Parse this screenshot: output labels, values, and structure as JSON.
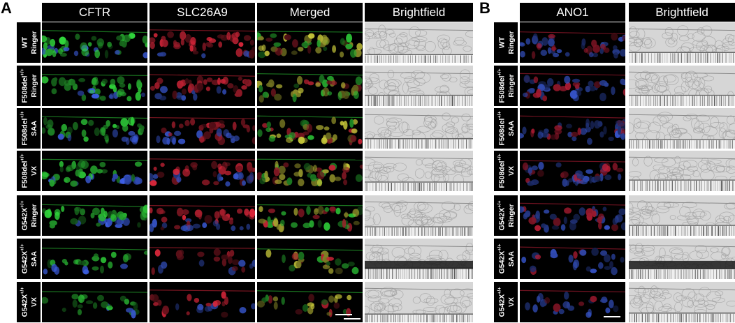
{
  "panels": [
    {
      "letter": "A",
      "headers": [
        "CFTR",
        "SLC26A9",
        "Merged",
        "Brightfield"
      ],
      "rows": [
        {
          "genotype": "WT",
          "sup": "",
          "treatment": "Ringer"
        },
        {
          "genotype": "F508del",
          "sup": "+/+",
          "treatment": "Ringer"
        },
        {
          "genotype": "F508del",
          "sup": "+/+",
          "treatment": "SAA"
        },
        {
          "genotype": "F508del",
          "sup": "+/+",
          "treatment": "VX"
        },
        {
          "genotype": "G542X",
          "sup": "+/+",
          "treatment": "Ringer"
        },
        {
          "genotype": "G542X",
          "sup": "+/+",
          "treatment": "SAA"
        },
        {
          "genotype": "G542X",
          "sup": "+/+",
          "treatment": "VX"
        }
      ]
    },
    {
      "letter": "B",
      "headers": [
        "ANO1",
        "Brightfield"
      ],
      "rows": [
        {
          "genotype": "WT",
          "sup": "",
          "treatment": "Ringer"
        },
        {
          "genotype": "F508del",
          "sup": "+/+",
          "treatment": "Ringer"
        },
        {
          "genotype": "F508del",
          "sup": "+/+",
          "treatment": "SAA"
        },
        {
          "genotype": "F508del",
          "sup": "+/+",
          "treatment": "VX"
        },
        {
          "genotype": "G542X",
          "sup": "+/+",
          "treatment": "Ringer"
        },
        {
          "genotype": "G542X",
          "sup": "+/+",
          "treatment": "SAA"
        },
        {
          "genotype": "G542X",
          "sup": "+/+",
          "treatment": "VX"
        }
      ]
    }
  ],
  "channel_colors": {
    "CFTR": "#2fd23a",
    "SLC26A9": "#d8263a",
    "Merged": "#c8c83a",
    "ANO1": "#c8203a",
    "nuclei_dapi": "#3a5ad8",
    "brightfield": "#d6d6d6"
  }
}
